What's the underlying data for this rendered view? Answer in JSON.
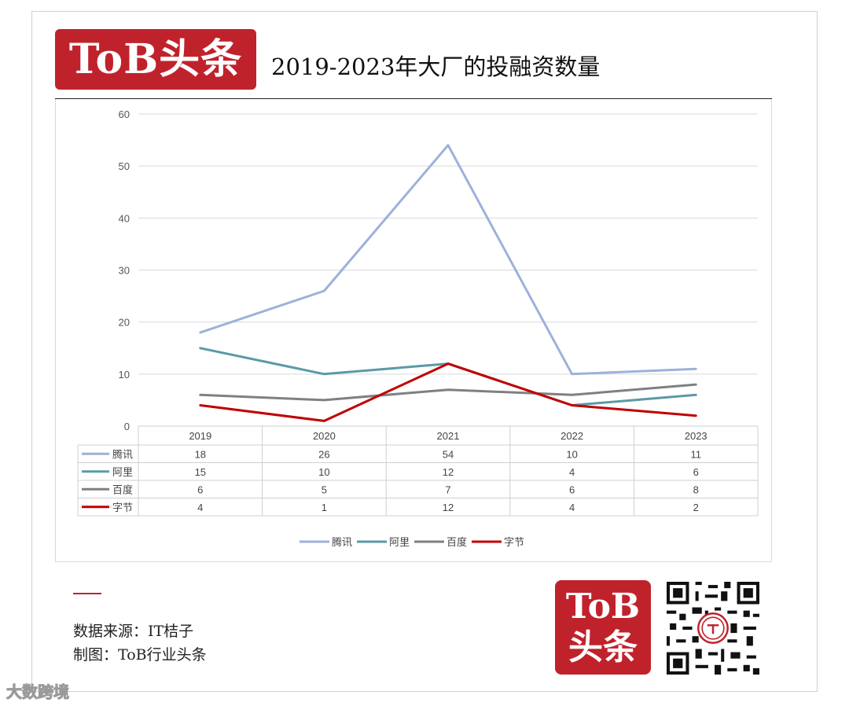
{
  "header": {
    "logo_text": "ToB头条",
    "title": "2019-2023年大厂的投融资数量"
  },
  "chart_data": {
    "type": "line",
    "title": "",
    "xlabel": "",
    "ylabel": "",
    "categories": [
      "2019",
      "2020",
      "2021",
      "2022",
      "2023"
    ],
    "ylim": [
      0,
      60
    ],
    "yticks": [
      0,
      10,
      20,
      30,
      40,
      50,
      60
    ],
    "grid": true,
    "legend": "bottom",
    "data_table": true,
    "series": [
      {
        "name": "腾讯",
        "color": "#9eb1db",
        "values": [
          18,
          26,
          54,
          10,
          11
        ]
      },
      {
        "name": "阿里",
        "color": "#5a9aa6",
        "values": [
          15,
          10,
          12,
          4,
          6
        ]
      },
      {
        "name": "百度",
        "color": "#808080",
        "values": [
          6,
          5,
          7,
          6,
          8
        ]
      },
      {
        "name": "字节",
        "color": "#c00000",
        "values": [
          4,
          1,
          12,
          4,
          2
        ]
      }
    ]
  },
  "footer": {
    "source": "数据来源：IT桔子",
    "made_by": "制图：ToB行业头条",
    "logo_line1": "ToB",
    "logo_line2": "头条",
    "qr_label": "QR code",
    "watermark": "大数跨境"
  }
}
